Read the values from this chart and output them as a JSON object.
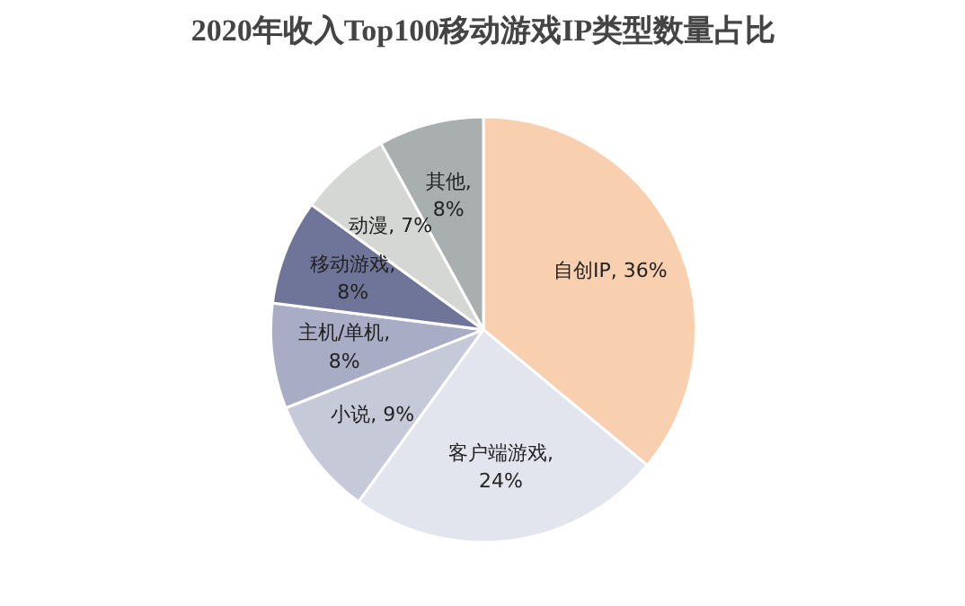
{
  "chart_data": {
    "type": "pie",
    "title": "2020年收入Top100移动游戏IP类型数量占比",
    "categories": [
      "自创IP",
      "客户端游戏",
      "小说",
      "主机/单机",
      "移动游戏",
      "动漫",
      "其他"
    ],
    "values": [
      36,
      24,
      9,
      8,
      8,
      7,
      8
    ],
    "colors": [
      "#f8d0b0",
      "#e3e5ee",
      "#c6c9d8",
      "#a8adc5",
      "#6e7598",
      "#d4d7d4",
      "#a9aeae"
    ],
    "value_labels": [
      ", 36%",
      ",\n24%",
      ", 9%",
      ",\n8%",
      ",\n8%",
      ", 7%",
      ",\n8%"
    ]
  }
}
